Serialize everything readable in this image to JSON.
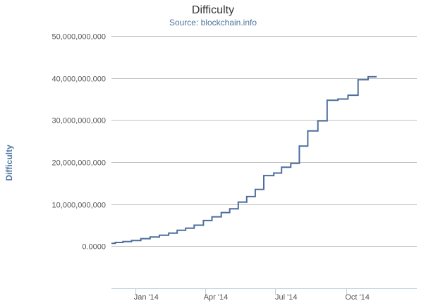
{
  "chart_data": {
    "type": "line",
    "title": "Difficulty",
    "subtitle": "Source: blockchain.info",
    "xlabel": "",
    "ylabel": "Difficulty",
    "x_ticks": [
      "Jan '14",
      "Apr '14",
      "Jul '14",
      "Oct '14"
    ],
    "y_ticks": [
      "50,000,000,000",
      "40,000,000,000",
      "30,000,000,000",
      "20,000,000,000",
      "10,000,000,000",
      "0.0000"
    ],
    "ylim": [
      -10000000000,
      50000000000
    ],
    "xlim": [
      "2013-12-01",
      "2014-12-31"
    ],
    "grid": true,
    "legend": "none",
    "line_color": "#4d6e9c",
    "series": [
      {
        "values": [
          {
            "x": "2013-12-01",
            "y": 700000000
          },
          {
            "x": "2013-12-06",
            "y": 900000000
          },
          {
            "x": "2013-12-16",
            "y": 1100000000
          },
          {
            "x": "2013-12-27",
            "y": 1350000000
          },
          {
            "x": "2014-01-08",
            "y": 1800000000
          },
          {
            "x": "2014-01-20",
            "y": 2200000000
          },
          {
            "x": "2014-02-01",
            "y": 2600000000
          },
          {
            "x": "2014-02-13",
            "y": 3100000000
          },
          {
            "x": "2014-02-24",
            "y": 3800000000
          },
          {
            "x": "2014-03-07",
            "y": 4300000000
          },
          {
            "x": "2014-03-18",
            "y": 5000000000
          },
          {
            "x": "2014-03-30",
            "y": 6100000000
          },
          {
            "x": "2014-04-10",
            "y": 7000000000
          },
          {
            "x": "2014-04-22",
            "y": 8000000000
          },
          {
            "x": "2014-05-03",
            "y": 8900000000
          },
          {
            "x": "2014-05-14",
            "y": 10500000000
          },
          {
            "x": "2014-05-25",
            "y": 11800000000
          },
          {
            "x": "2014-06-05",
            "y": 13500000000
          },
          {
            "x": "2014-06-16",
            "y": 16800000000
          },
          {
            "x": "2014-06-29",
            "y": 17400000000
          },
          {
            "x": "2014-07-09",
            "y": 18800000000
          },
          {
            "x": "2014-07-21",
            "y": 19700000000
          },
          {
            "x": "2014-08-01",
            "y": 23800000000
          },
          {
            "x": "2014-08-12",
            "y": 27400000000
          },
          {
            "x": "2014-08-25",
            "y": 29800000000
          },
          {
            "x": "2014-09-06",
            "y": 34700000000
          },
          {
            "x": "2014-09-20",
            "y": 35000000000
          },
          {
            "x": "2014-10-03",
            "y": 35900000000
          },
          {
            "x": "2014-10-16",
            "y": 39600000000
          },
          {
            "x": "2014-10-29",
            "y": 40300000000
          },
          {
            "x": "2014-11-09",
            "y": 40300000000
          }
        ]
      }
    ]
  }
}
